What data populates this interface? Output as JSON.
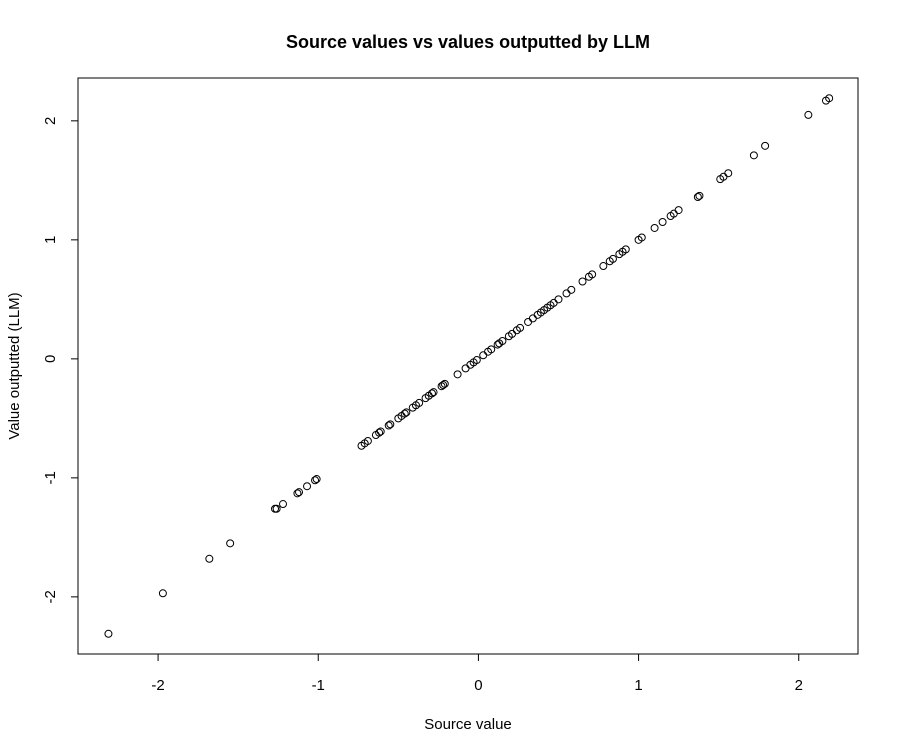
{
  "chart_data": {
    "type": "scatter",
    "title": "Source values vs values outputted by LLM",
    "xlabel": "Source value",
    "ylabel": "Value outputted (LLM)",
    "xlim": [
      -2.5,
      2.37
    ],
    "ylim": [
      -2.48,
      2.36
    ],
    "xticks": [
      -2,
      -1,
      0,
      1,
      2
    ],
    "yticks": [
      -2,
      -1,
      0,
      1,
      2
    ],
    "xtick_labels": [
      "-2",
      "-1",
      "0",
      "1",
      "2"
    ],
    "ytick_labels": [
      "-2",
      "-1",
      "0",
      "1",
      "2"
    ],
    "grid": false,
    "legend": "none",
    "marker": "open-circle",
    "points": [
      [
        -2.31,
        -2.31
      ],
      [
        -1.97,
        -1.97
      ],
      [
        -1.68,
        -1.68
      ],
      [
        -1.55,
        -1.55
      ],
      [
        -1.27,
        -1.26
      ],
      [
        -1.26,
        -1.26
      ],
      [
        -1.22,
        -1.22
      ],
      [
        -1.13,
        -1.13
      ],
      [
        -1.12,
        -1.12
      ],
      [
        -1.07,
        -1.07
      ],
      [
        -1.02,
        -1.02
      ],
      [
        -1.01,
        -1.01
      ],
      [
        -0.73,
        -0.73
      ],
      [
        -0.71,
        -0.71
      ],
      [
        -0.69,
        -0.69
      ],
      [
        -0.64,
        -0.64
      ],
      [
        -0.62,
        -0.62
      ],
      [
        -0.61,
        -0.61
      ],
      [
        -0.56,
        -0.56
      ],
      [
        -0.55,
        -0.55
      ],
      [
        -0.5,
        -0.5
      ],
      [
        -0.48,
        -0.48
      ],
      [
        -0.46,
        -0.46
      ],
      [
        -0.45,
        -0.45
      ],
      [
        -0.41,
        -0.41
      ],
      [
        -0.39,
        -0.39
      ],
      [
        -0.37,
        -0.37
      ],
      [
        -0.33,
        -0.33
      ],
      [
        -0.31,
        -0.31
      ],
      [
        -0.29,
        -0.29
      ],
      [
        -0.28,
        -0.28
      ],
      [
        -0.23,
        -0.23
      ],
      [
        -0.22,
        -0.22
      ],
      [
        -0.21,
        -0.21
      ],
      [
        -0.13,
        -0.13
      ],
      [
        -0.08,
        -0.08
      ],
      [
        -0.05,
        -0.05
      ],
      [
        -0.03,
        -0.03
      ],
      [
        -0.01,
        -0.01
      ],
      [
        0.03,
        0.03
      ],
      [
        0.06,
        0.06
      ],
      [
        0.08,
        0.08
      ],
      [
        0.12,
        0.12
      ],
      [
        0.13,
        0.13
      ],
      [
        0.15,
        0.15
      ],
      [
        0.19,
        0.19
      ],
      [
        0.21,
        0.21
      ],
      [
        0.24,
        0.24
      ],
      [
        0.26,
        0.26
      ],
      [
        0.31,
        0.31
      ],
      [
        0.34,
        0.34
      ],
      [
        0.37,
        0.37
      ],
      [
        0.39,
        0.39
      ],
      [
        0.41,
        0.41
      ],
      [
        0.43,
        0.43
      ],
      [
        0.45,
        0.45
      ],
      [
        0.47,
        0.47
      ],
      [
        0.5,
        0.5
      ],
      [
        0.55,
        0.55
      ],
      [
        0.58,
        0.58
      ],
      [
        0.65,
        0.65
      ],
      [
        0.69,
        0.69
      ],
      [
        0.71,
        0.71
      ],
      [
        0.78,
        0.78
      ],
      [
        0.82,
        0.82
      ],
      [
        0.84,
        0.84
      ],
      [
        0.88,
        0.88
      ],
      [
        0.9,
        0.9
      ],
      [
        0.92,
        0.92
      ],
      [
        1.0,
        1.0
      ],
      [
        1.02,
        1.02
      ],
      [
        1.1,
        1.1
      ],
      [
        1.15,
        1.15
      ],
      [
        1.2,
        1.2
      ],
      [
        1.22,
        1.22
      ],
      [
        1.25,
        1.25
      ],
      [
        1.37,
        1.36
      ],
      [
        1.38,
        1.37
      ],
      [
        1.51,
        1.51
      ],
      [
        1.53,
        1.53
      ],
      [
        1.56,
        1.56
      ],
      [
        1.72,
        1.71
      ],
      [
        1.79,
        1.79
      ],
      [
        2.06,
        2.05
      ],
      [
        2.17,
        2.17
      ],
      [
        2.19,
        2.19
      ]
    ]
  }
}
